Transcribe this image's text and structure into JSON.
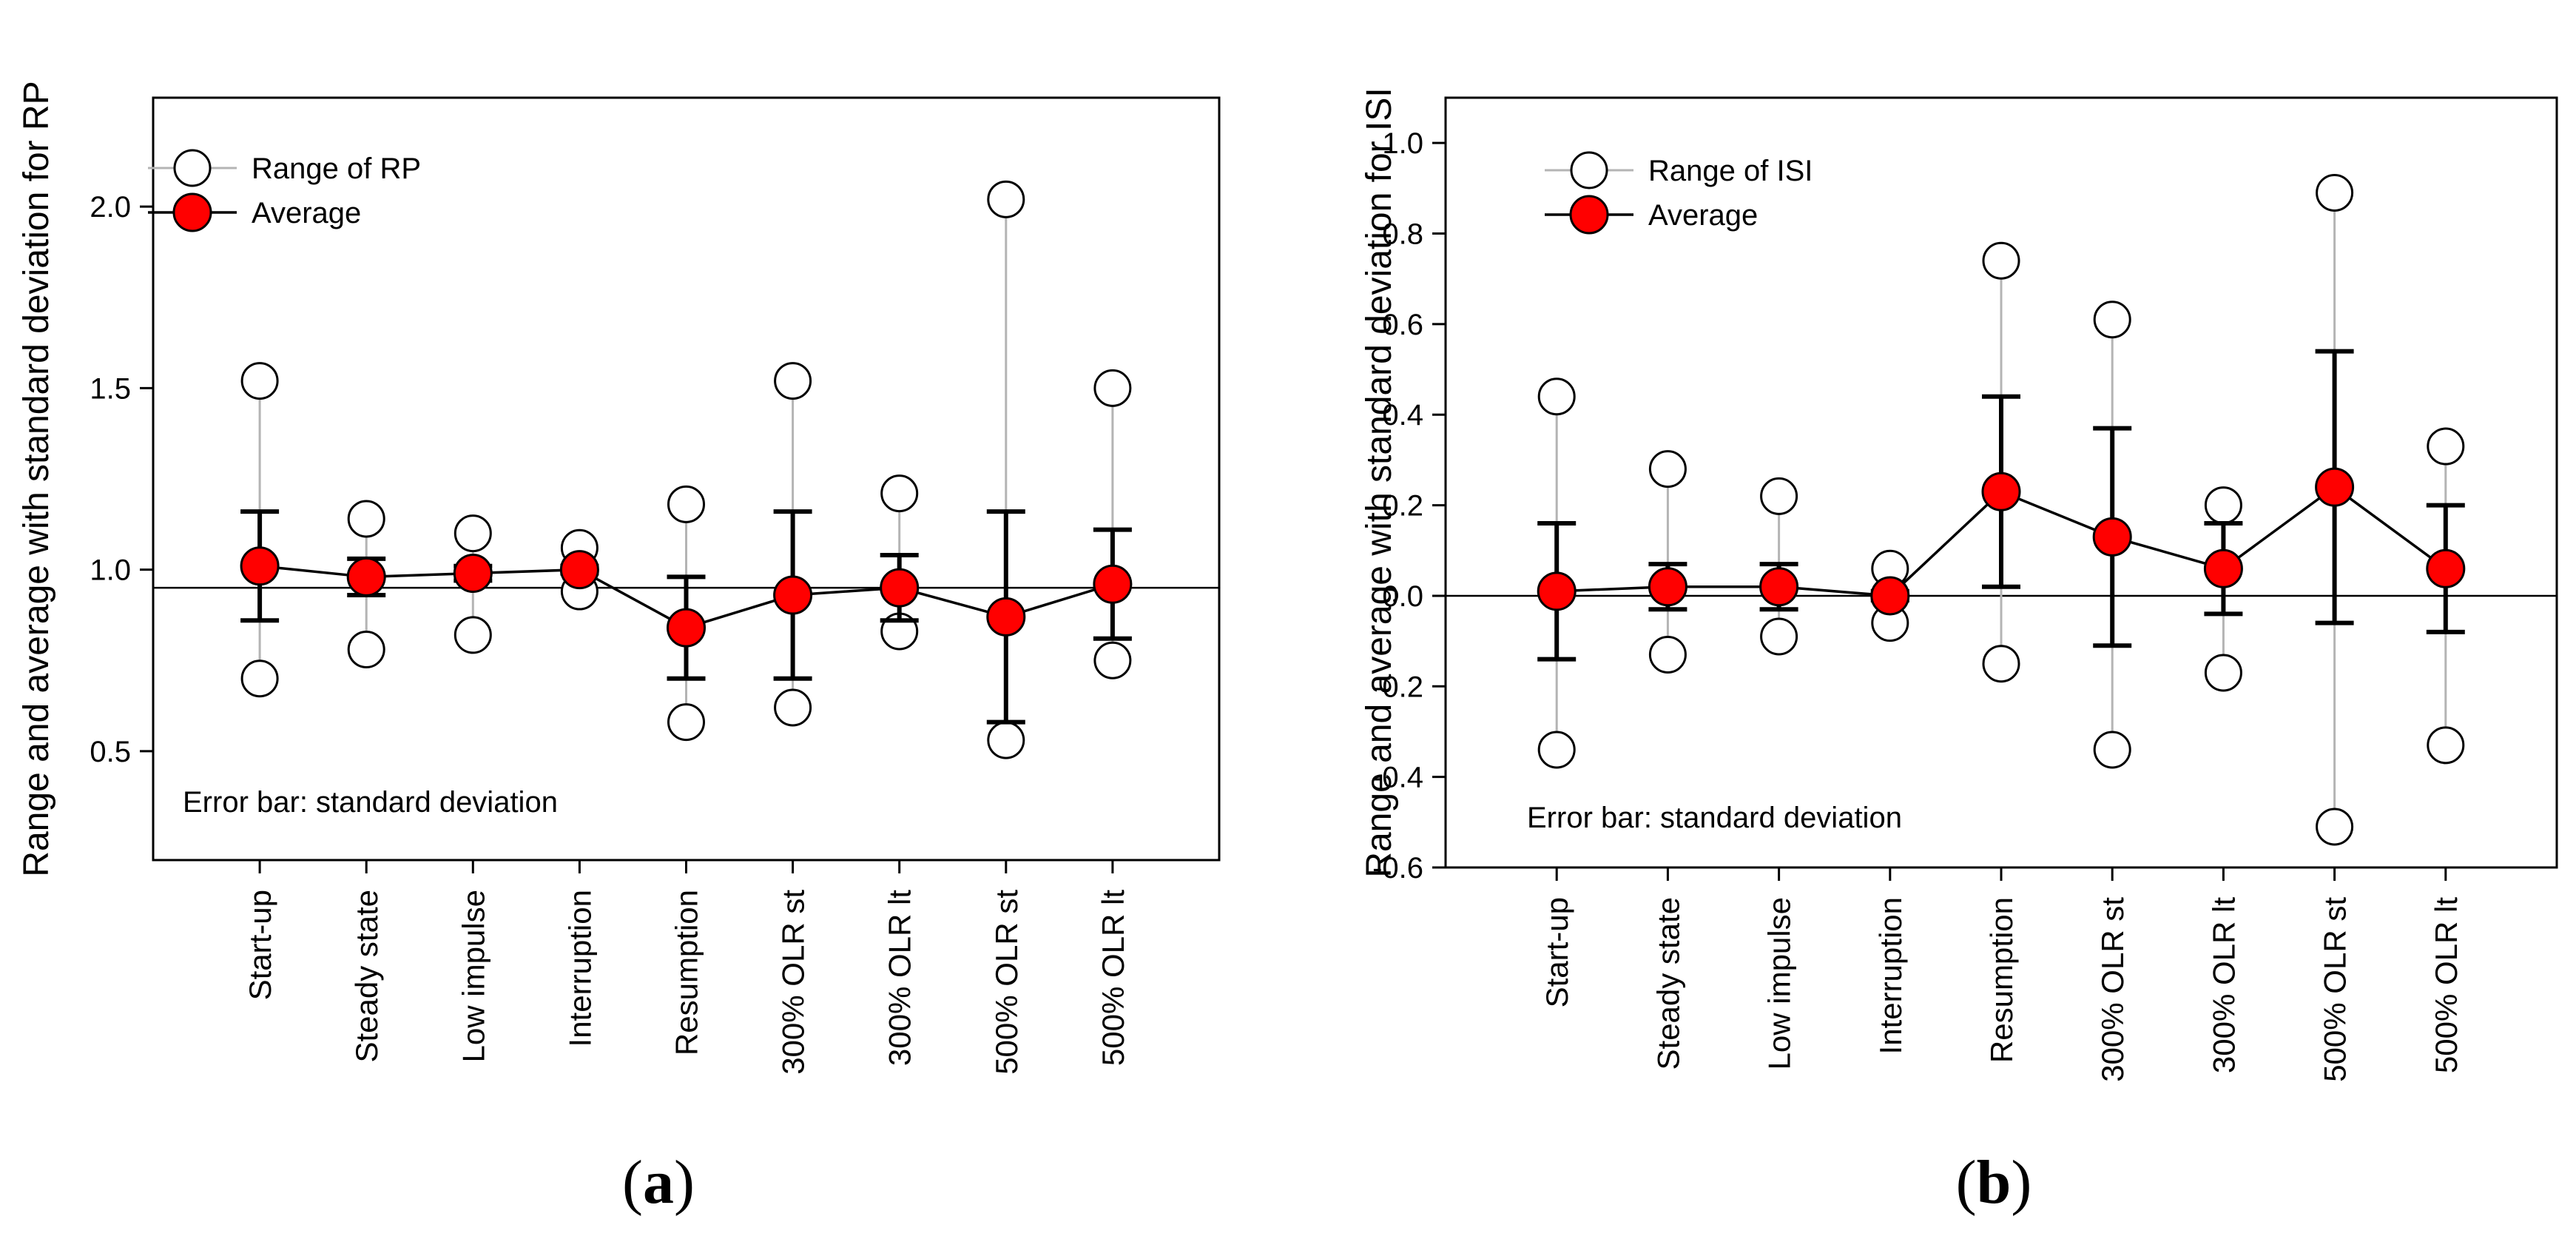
{
  "chart_data": [
    {
      "type": "scatter",
      "panel_label": "a",
      "ylabel": "Range and average with standard deviation for RP",
      "ylim": [
        0.2,
        2.3
      ],
      "yticks": [
        0.5,
        1.0,
        1.5,
        2.0
      ],
      "ytick_labels": [
        "0.5",
        "1.0",
        "1.5",
        "2.0"
      ],
      "reference_line": 0.95,
      "categories": [
        "Start-up",
        "Steady state",
        "Low impulse",
        "Interruption",
        "Resumption",
        "300% OLR st",
        "300% OLR lt",
        "500% OLR st",
        "500% OLR lt"
      ],
      "legend": {
        "position": "top-left",
        "range_label": "Range of RP",
        "average_label": "Average"
      },
      "annotation": "Error bar: standard deviation",
      "series": [
        {
          "name": "Range of RP (max)",
          "values": [
            1.52,
            1.14,
            1.1,
            1.06,
            1.18,
            1.52,
            1.21,
            2.02,
            1.5
          ]
        },
        {
          "name": "Range of RP (min)",
          "values": [
            0.7,
            0.78,
            0.82,
            0.94,
            0.58,
            0.62,
            0.83,
            0.53,
            0.75
          ]
        },
        {
          "name": "Average",
          "values": [
            1.01,
            0.98,
            0.99,
            1.0,
            0.84,
            0.93,
            0.95,
            0.87,
            0.96
          ]
        },
        {
          "name": "SD upper",
          "values": [
            1.16,
            1.03,
            1.01,
            1.01,
            0.98,
            1.16,
            1.04,
            1.16,
            1.11
          ]
        },
        {
          "name": "SD lower",
          "values": [
            0.86,
            0.93,
            0.97,
            0.99,
            0.7,
            0.7,
            0.86,
            0.58,
            0.81
          ]
        }
      ],
      "colors": {
        "average_fill": "#ff0000",
        "range_line": "#b4b4b4",
        "marker_stroke": "#000000"
      }
    },
    {
      "type": "scatter",
      "panel_label": "b",
      "ylabel": "Range and average with standard deviation for ISI",
      "ylim": [
        -0.6,
        1.1
      ],
      "yticks": [
        -0.6,
        -0.4,
        -0.2,
        0.0,
        0.2,
        0.4,
        0.6,
        0.8,
        1.0
      ],
      "ytick_labels": [
        "-0.6",
        "-0.4",
        "-0.2",
        "0.0",
        "0.2",
        "0.4",
        "0.6",
        "0.8",
        "1.0"
      ],
      "reference_line": 0.0,
      "categories": [
        "Start-up",
        "Steady state",
        "Low impulse",
        "Interruption",
        "Resumption",
        "300% OLR st",
        "300% OLR lt",
        "500% OLR st",
        "500% OLR lt"
      ],
      "legend": {
        "position": "top-left",
        "range_label": "Range of ISI",
        "average_label": "Average"
      },
      "annotation": "Error bar: standard deviation",
      "series": [
        {
          "name": "Range of ISI (max)",
          "values": [
            0.44,
            0.28,
            0.22,
            0.06,
            0.74,
            0.61,
            0.2,
            0.89,
            0.33
          ]
        },
        {
          "name": "Range of ISI (min)",
          "values": [
            -0.34,
            -0.13,
            -0.09,
            -0.06,
            -0.15,
            -0.34,
            -0.17,
            -0.51,
            -0.33
          ]
        },
        {
          "name": "Average",
          "values": [
            0.01,
            0.02,
            0.02,
            0.0,
            0.23,
            0.13,
            0.06,
            0.24,
            0.06
          ]
        },
        {
          "name": "SD upper",
          "values": [
            0.16,
            0.07,
            0.07,
            0.01,
            0.44,
            0.37,
            0.16,
            0.54,
            0.2
          ]
        },
        {
          "name": "SD lower",
          "values": [
            -0.14,
            -0.03,
            -0.03,
            -0.01,
            0.02,
            -0.11,
            -0.04,
            -0.06,
            -0.08
          ]
        }
      ],
      "colors": {
        "average_fill": "#ff0000",
        "range_line": "#b4b4b4",
        "marker_stroke": "#000000"
      }
    }
  ]
}
